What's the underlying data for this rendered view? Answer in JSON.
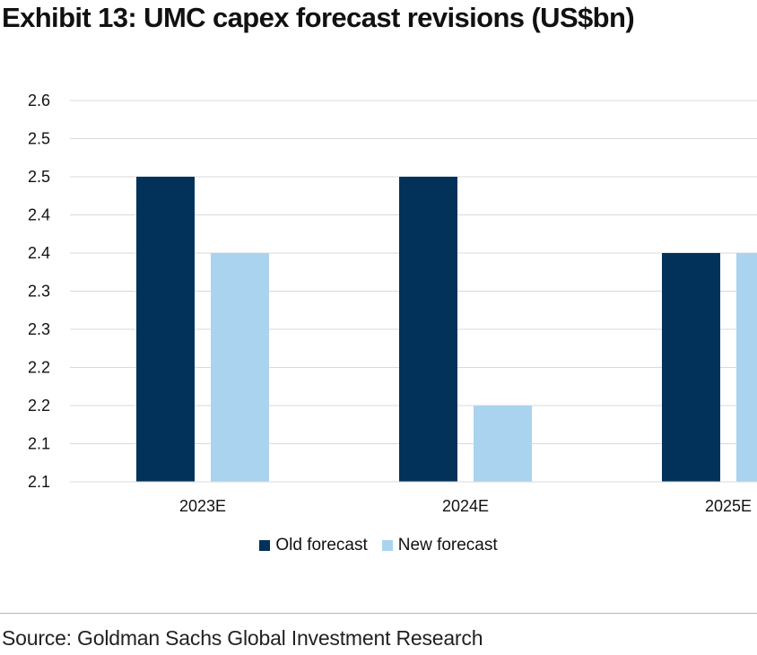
{
  "title": "Exhibit 13: UMC capex forecast revisions (US$bn)",
  "source": "Source: Goldman Sachs Global Investment Research",
  "colors": {
    "old": "#02325a",
    "new": "#aad3ef",
    "grid": "#d9d9d9"
  },
  "chart_data": {
    "type": "bar",
    "categories": [
      "2023E",
      "2024E",
      "2025E"
    ],
    "series": [
      {
        "name": "Old forecast",
        "values": [
          2.5,
          2.5,
          2.4
        ]
      },
      {
        "name": "New forecast",
        "values": [
          2.4,
          2.2,
          2.4
        ]
      }
    ],
    "y_tick_labels": [
      "2.1",
      "2.1",
      "2.2",
      "2.2",
      "2.3",
      "2.3",
      "2.4",
      "2.4",
      "2.5",
      "2.5",
      "2.6"
    ],
    "ylim": [
      2.1,
      2.6
    ],
    "grid": true,
    "legend_position": "bottom"
  }
}
